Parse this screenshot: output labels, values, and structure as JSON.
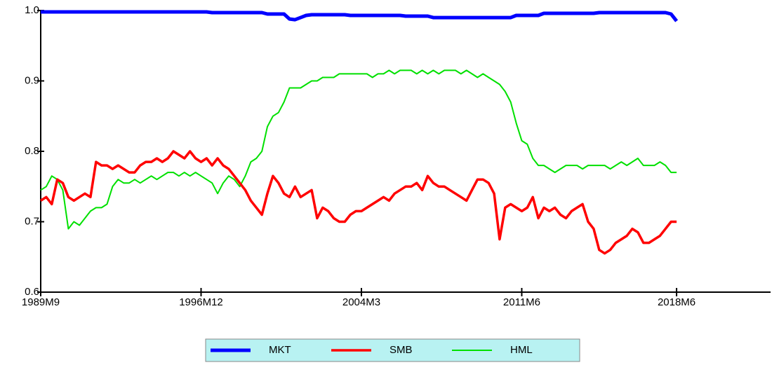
{
  "chart_data": {
    "type": "line",
    "categories": [
      "1989M9",
      null,
      null,
      null,
      null,
      null,
      null,
      null,
      null,
      null,
      null,
      null,
      null,
      null,
      null,
      null,
      null,
      null,
      null,
      null,
      null,
      null,
      null,
      null,
      null,
      null,
      null,
      null,
      null,
      "1996M12",
      null,
      null,
      null,
      null,
      null,
      null,
      null,
      null,
      null,
      null,
      null,
      null,
      null,
      null,
      null,
      null,
      null,
      null,
      null,
      null,
      null,
      null,
      null,
      null,
      null,
      null,
      null,
      null,
      "2004M3",
      null,
      null,
      null,
      null,
      null,
      null,
      null,
      null,
      null,
      null,
      null,
      null,
      null,
      null,
      null,
      null,
      null,
      null,
      null,
      null,
      null,
      null,
      null,
      null,
      null,
      null,
      null,
      null,
      "2011M6",
      null,
      null,
      null,
      null,
      null,
      null,
      null,
      null,
      null,
      null,
      null,
      null,
      null,
      null,
      null,
      null,
      null,
      null,
      null,
      null,
      null,
      null,
      null,
      null,
      null,
      null,
      null,
      "2018M6",
      null,
      null,
      null,
      null,
      null,
      null,
      null,
      null,
      null,
      null,
      null,
      null,
      null,
      null,
      null,
      null,
      null
    ],
    "series": [
      {
        "name": "MKT",
        "color": "#0000ff",
        "values": [
          0.998,
          0.998,
          0.998,
          0.998,
          0.998,
          0.998,
          0.998,
          0.998,
          0.998,
          0.998,
          0.998,
          0.998,
          0.998,
          0.998,
          0.998,
          0.998,
          0.998,
          0.998,
          0.998,
          0.998,
          0.998,
          0.998,
          0.998,
          0.998,
          0.998,
          0.998,
          0.998,
          0.998,
          0.998,
          0.998,
          0.998,
          0.997,
          0.997,
          0.997,
          0.997,
          0.997,
          0.997,
          0.997,
          0.997,
          0.997,
          0.997,
          0.995,
          0.995,
          0.995,
          0.995,
          0.988,
          0.987,
          0.99,
          0.993,
          0.994,
          0.994,
          0.994,
          0.994,
          0.994,
          0.994,
          0.994,
          0.993,
          0.993,
          0.993,
          0.993,
          0.993,
          0.993,
          0.993,
          0.993,
          0.993,
          0.993,
          0.992,
          0.992,
          0.992,
          0.992,
          0.992,
          0.99,
          0.99,
          0.99,
          0.99,
          0.99,
          0.99,
          0.99,
          0.99,
          0.99,
          0.99,
          0.99,
          0.99,
          0.99,
          0.99,
          0.99,
          0.993,
          0.993,
          0.993,
          0.993,
          0.993,
          0.996,
          0.996,
          0.996,
          0.996,
          0.996,
          0.996,
          0.996,
          0.996,
          0.996,
          0.996,
          0.997,
          0.997,
          0.997,
          0.997,
          0.997,
          0.997,
          0.997,
          0.997,
          0.997,
          0.997,
          0.997,
          0.997,
          0.997,
          0.995,
          0.985,
          null,
          null,
          null,
          null,
          null,
          null,
          null,
          null,
          null,
          null,
          null,
          null,
          null,
          null,
          null,
          null,
          null
        ]
      },
      {
        "name": "SMB",
        "color": "#ff0000",
        "values": [
          0.73,
          0.735,
          0.725,
          0.76,
          0.755,
          0.735,
          0.73,
          0.735,
          0.74,
          0.735,
          0.785,
          0.78,
          0.78,
          0.775,
          0.78,
          0.775,
          0.77,
          0.77,
          0.78,
          0.785,
          0.785,
          0.79,
          0.785,
          0.79,
          0.8,
          0.795,
          0.79,
          0.8,
          0.79,
          0.785,
          0.79,
          0.78,
          0.79,
          0.78,
          0.775,
          0.765,
          0.755,
          0.745,
          0.73,
          0.72,
          0.71,
          0.74,
          0.765,
          0.755,
          0.74,
          0.735,
          0.75,
          0.735,
          0.74,
          0.745,
          0.705,
          0.72,
          0.715,
          0.705,
          0.7,
          0.7,
          0.71,
          0.715,
          0.715,
          0.72,
          0.725,
          0.73,
          0.735,
          0.73,
          0.74,
          0.745,
          0.75,
          0.75,
          0.755,
          0.745,
          0.765,
          0.755,
          0.75,
          0.75,
          0.745,
          0.74,
          0.735,
          0.73,
          0.745,
          0.76,
          0.76,
          0.755,
          0.74,
          0.675,
          0.72,
          0.725,
          0.72,
          0.715,
          0.72,
          0.735,
          0.705,
          0.72,
          0.715,
          0.72,
          0.71,
          0.705,
          0.715,
          0.72,
          0.725,
          0.7,
          0.69,
          0.66,
          0.655,
          0.66,
          0.67,
          0.675,
          0.68,
          0.69,
          0.685,
          0.67,
          0.67,
          0.675,
          0.68,
          0.69,
          0.7,
          0.7,
          null,
          null,
          null,
          null,
          null,
          null,
          null,
          null,
          null,
          null,
          null,
          null,
          null,
          null,
          null,
          null,
          null
        ]
      },
      {
        "name": "HML",
        "color": "#00e000",
        "values": [
          0.745,
          0.75,
          0.765,
          0.76,
          0.745,
          0.69,
          0.7,
          0.695,
          0.705,
          0.715,
          0.72,
          0.72,
          0.725,
          0.75,
          0.76,
          0.755,
          0.755,
          0.76,
          0.755,
          0.76,
          0.765,
          0.76,
          0.765,
          0.77,
          0.77,
          0.765,
          0.77,
          0.765,
          0.77,
          0.765,
          0.76,
          0.755,
          0.74,
          0.755,
          0.765,
          0.76,
          0.75,
          0.765,
          0.785,
          0.79,
          0.8,
          0.835,
          0.85,
          0.855,
          0.87,
          0.89,
          0.89,
          0.89,
          0.895,
          0.9,
          0.9,
          0.905,
          0.905,
          0.905,
          0.91,
          0.91,
          0.91,
          0.91,
          0.91,
          0.91,
          0.905,
          0.91,
          0.91,
          0.915,
          0.91,
          0.915,
          0.915,
          0.915,
          0.91,
          0.915,
          0.91,
          0.915,
          0.91,
          0.915,
          0.915,
          0.915,
          0.91,
          0.915,
          0.91,
          0.905,
          0.91,
          0.905,
          0.9,
          0.895,
          0.885,
          0.87,
          0.84,
          0.815,
          0.81,
          0.79,
          0.78,
          0.78,
          0.775,
          0.77,
          0.775,
          0.78,
          0.78,
          0.78,
          0.775,
          0.78,
          0.78,
          0.78,
          0.78,
          0.775,
          0.78,
          0.785,
          0.78,
          0.785,
          0.79,
          0.78,
          0.78,
          0.78,
          0.785,
          0.78,
          0.77,
          0.77,
          null,
          null,
          null,
          null,
          null,
          null,
          null,
          null,
          null,
          null,
          null,
          null,
          null,
          null,
          null,
          null,
          null
        ]
      }
    ],
    "ylim": [
      0.6,
      1
    ],
    "yticks": [
      0.6,
      0.7,
      0.8,
      0.9,
      {
        "value": 1,
        "label": "1.0"
      }
    ],
    "legend": "bottom"
  }
}
